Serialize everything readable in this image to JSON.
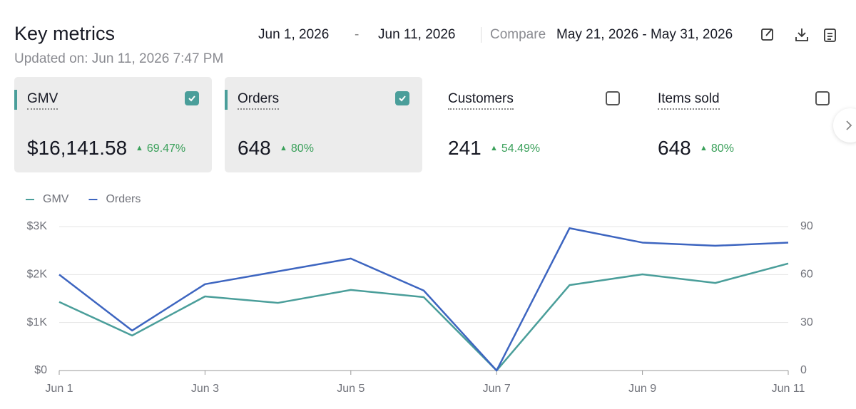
{
  "header": {
    "title": "Key metrics",
    "start_date": "Jun 1, 2026",
    "separator": "-",
    "end_date": "Jun 11, 2026",
    "compare_label": "Compare",
    "compare_range": "May 21, 2026 - May 31, 2026",
    "updated": "Updated on: Jun 11, 2026 7:47 PM"
  },
  "metrics": [
    {
      "label": "GMV",
      "value": "$16,141.58",
      "change": "69.47%",
      "selected": true
    },
    {
      "label": "Orders",
      "value": "648",
      "change": "80%",
      "selected": true
    },
    {
      "label": "Customers",
      "value": "241",
      "change": "54.49%",
      "selected": false
    },
    {
      "label": "Items sold",
      "value": "648",
      "change": "80%",
      "selected": false
    }
  ],
  "chart_data": {
    "type": "line",
    "categories": [
      "Jun 1",
      null,
      "Jun 3",
      null,
      "Jun 5",
      null,
      "Jun 7",
      null,
      "Jun 9",
      null,
      "Jun 11"
    ],
    "series": [
      {
        "name": "GMV",
        "color": "#4a9e9a",
        "values": [
          1430,
          730,
          1545,
          1410,
          1680,
          1530,
          0,
          1780,
          2005,
          1825,
          2230
        ]
      },
      {
        "name": "Orders",
        "color": "#3d65c0",
        "axis": "y2",
        "values": [
          60,
          25,
          54,
          62,
          70,
          50,
          0,
          89,
          80,
          78,
          80
        ]
      }
    ],
    "ylim": [
      0,
      3000
    ],
    "yticks": [
      {
        "value": 0,
        "label": "$0"
      },
      {
        "value": 1000,
        "label": "$1K"
      },
      {
        "value": 2000,
        "label": "$2K"
      },
      {
        "value": 3000,
        "label": "$3K"
      }
    ],
    "y2lim": [
      0,
      90
    ],
    "y2ticks": [
      0,
      30,
      60,
      90
    ],
    "grid": true,
    "legend": "top-left"
  }
}
